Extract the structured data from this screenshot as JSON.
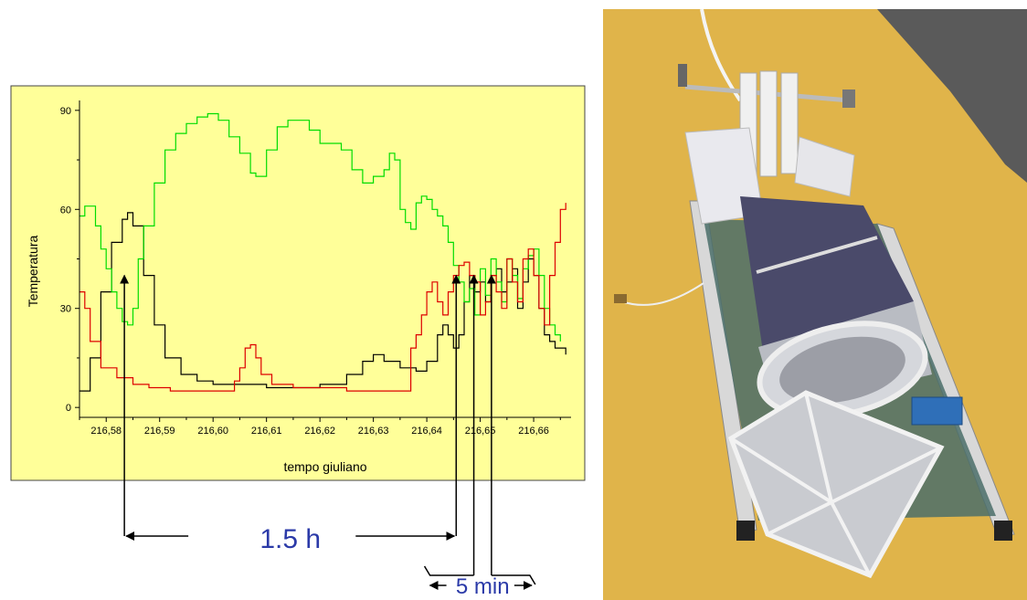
{
  "chart_data": {
    "type": "line",
    "title": "",
    "xlabel": "tempo giuliano",
    "ylabel": "Temperatura",
    "xlim": [
      216.575,
      216.667
    ],
    "ylim": [
      -3,
      93
    ],
    "x_ticks": [
      {
        "value": 216.58,
        "label": "216,58"
      },
      {
        "value": 216.59,
        "label": "216,59"
      },
      {
        "value": 216.6,
        "label": "216,60"
      },
      {
        "value": 216.61,
        "label": "216,61"
      },
      {
        "value": 216.62,
        "label": "216,62"
      },
      {
        "value": 216.63,
        "label": "216,63"
      },
      {
        "value": 216.64,
        "label": "216,64"
      },
      {
        "value": 216.65,
        "label": "216,65"
      },
      {
        "value": 216.66,
        "label": "216,66"
      }
    ],
    "y_ticks": [
      {
        "value": 0,
        "label": "0"
      },
      {
        "value": 30,
        "label": "30"
      },
      {
        "value": 60,
        "label": "60"
      },
      {
        "value": 90,
        "label": "90"
      }
    ],
    "grid": false,
    "legend": "none",
    "plot_background": "#ffff99",
    "series": [
      {
        "color": "#000000",
        "points": [
          [
            216.575,
            5
          ],
          [
            216.577,
            15
          ],
          [
            216.579,
            35
          ],
          [
            216.581,
            50
          ],
          [
            216.583,
            57
          ],
          [
            216.584,
            59
          ],
          [
            216.585,
            55
          ],
          [
            216.587,
            40
          ],
          [
            216.589,
            25
          ],
          [
            216.591,
            15
          ],
          [
            216.594,
            10
          ],
          [
            216.597,
            8
          ],
          [
            216.6,
            7
          ],
          [
            216.605,
            7
          ],
          [
            216.61,
            6
          ],
          [
            216.615,
            6
          ],
          [
            216.62,
            7
          ],
          [
            216.625,
            10
          ],
          [
            216.628,
            14
          ],
          [
            216.63,
            16
          ],
          [
            216.632,
            14
          ],
          [
            216.635,
            12
          ],
          [
            216.638,
            11
          ],
          [
            216.64,
            14
          ],
          [
            216.642,
            22
          ],
          [
            216.643,
            25
          ],
          [
            216.644,
            22
          ],
          [
            216.645,
            18
          ],
          [
            216.646,
            22
          ],
          [
            216.647,
            32
          ],
          [
            216.648,
            40
          ],
          [
            216.649,
            35
          ],
          [
            216.65,
            38
          ],
          [
            216.651,
            32
          ],
          [
            216.652,
            40
          ],
          [
            216.653,
            42
          ],
          [
            216.654,
            35
          ],
          [
            216.655,
            38
          ],
          [
            216.656,
            42
          ],
          [
            216.657,
            30
          ],
          [
            216.658,
            38
          ],
          [
            216.659,
            45
          ],
          [
            216.66,
            40
          ],
          [
            216.661,
            30
          ],
          [
            216.662,
            22
          ],
          [
            216.663,
            20
          ],
          [
            216.664,
            18
          ],
          [
            216.666,
            16
          ]
        ]
      },
      {
        "color": "#00dd00",
        "points": [
          [
            216.575,
            58
          ],
          [
            216.576,
            61
          ],
          [
            216.578,
            55
          ],
          [
            216.579,
            48
          ],
          [
            216.58,
            42
          ],
          [
            216.581,
            35
          ],
          [
            216.582,
            30
          ],
          [
            216.583,
            26
          ],
          [
            216.584,
            25
          ],
          [
            216.585,
            30
          ],
          [
            216.586,
            45
          ],
          [
            216.587,
            55
          ],
          [
            216.589,
            68
          ],
          [
            216.591,
            78
          ],
          [
            216.593,
            83
          ],
          [
            216.595,
            86
          ],
          [
            216.597,
            88
          ],
          [
            216.599,
            89
          ],
          [
            216.601,
            87
          ],
          [
            216.603,
            82
          ],
          [
            216.605,
            77
          ],
          [
            216.607,
            71
          ],
          [
            216.608,
            70
          ],
          [
            216.61,
            78
          ],
          [
            216.612,
            85
          ],
          [
            216.614,
            87
          ],
          [
            216.616,
            87
          ],
          [
            216.618,
            84
          ],
          [
            216.62,
            80
          ],
          [
            216.622,
            80
          ],
          [
            216.624,
            78
          ],
          [
            216.626,
            72
          ],
          [
            216.628,
            68
          ],
          [
            216.63,
            70
          ],
          [
            216.632,
            72
          ],
          [
            216.633,
            77
          ],
          [
            216.634,
            75
          ],
          [
            216.635,
            60
          ],
          [
            216.636,
            56
          ],
          [
            216.637,
            54
          ],
          [
            216.638,
            62
          ],
          [
            216.639,
            64
          ],
          [
            216.64,
            63
          ],
          [
            216.641,
            60
          ],
          [
            216.642,
            58
          ],
          [
            216.643,
            55
          ],
          [
            216.644,
            50
          ],
          [
            216.645,
            43
          ],
          [
            216.646,
            38
          ],
          [
            216.647,
            32
          ],
          [
            216.648,
            36
          ],
          [
            216.649,
            28
          ],
          [
            216.65,
            42
          ],
          [
            216.651,
            34
          ],
          [
            216.652,
            45
          ],
          [
            216.653,
            38
          ],
          [
            216.654,
            32
          ],
          [
            216.655,
            45
          ],
          [
            216.656,
            40
          ],
          [
            216.657,
            33
          ],
          [
            216.658,
            42
          ],
          [
            216.659,
            46
          ],
          [
            216.66,
            48
          ],
          [
            216.661,
            40
          ],
          [
            216.662,
            30
          ],
          [
            216.663,
            25
          ],
          [
            216.664,
            22
          ],
          [
            216.665,
            20
          ]
        ]
      },
      {
        "color": "#dd0000",
        "points": [
          [
            216.575,
            35
          ],
          [
            216.576,
            30
          ],
          [
            216.577,
            20
          ],
          [
            216.579,
            12
          ],
          [
            216.582,
            9
          ],
          [
            216.585,
            7
          ],
          [
            216.588,
            6
          ],
          [
            216.592,
            5
          ],
          [
            216.595,
            5
          ],
          [
            216.6,
            5
          ],
          [
            216.602,
            5
          ],
          [
            216.604,
            8
          ],
          [
            216.605,
            12
          ],
          [
            216.606,
            18
          ],
          [
            216.607,
            19
          ],
          [
            216.608,
            15
          ],
          [
            216.609,
            10
          ],
          [
            216.611,
            7
          ],
          [
            216.615,
            6
          ],
          [
            216.62,
            6
          ],
          [
            216.625,
            5
          ],
          [
            216.63,
            5
          ],
          [
            216.635,
            5
          ],
          [
            216.636,
            5
          ],
          [
            216.637,
            18
          ],
          [
            216.638,
            22
          ],
          [
            216.639,
            28
          ],
          [
            216.64,
            35
          ],
          [
            216.641,
            38
          ],
          [
            216.642,
            32
          ],
          [
            216.643,
            28
          ],
          [
            216.644,
            35
          ],
          [
            216.645,
            40
          ],
          [
            216.646,
            43
          ],
          [
            216.647,
            44
          ],
          [
            216.648,
            40
          ],
          [
            216.649,
            38
          ],
          [
            216.65,
            28
          ],
          [
            216.651,
            32
          ],
          [
            216.652,
            40
          ],
          [
            216.653,
            35
          ],
          [
            216.654,
            30
          ],
          [
            216.655,
            45
          ],
          [
            216.656,
            38
          ],
          [
            216.657,
            32
          ],
          [
            216.658,
            45
          ],
          [
            216.659,
            48
          ],
          [
            216.66,
            40
          ],
          [
            216.661,
            30
          ],
          [
            216.662,
            25
          ],
          [
            216.663,
            40
          ],
          [
            216.664,
            50
          ],
          [
            216.665,
            60
          ],
          [
            216.666,
            62
          ]
        ]
      }
    ],
    "annotations": [
      {
        "text": "1.5 h",
        "from_x": 216.5834,
        "to_x": 216.6455
      },
      {
        "text": "5 min",
        "from_x": 216.6488,
        "to_x": 216.6521
      }
    ]
  },
  "photo": {
    "subject": "balloon-borne instrument payload on ground",
    "background_color": "#e0b44a",
    "asphalt_color": "#5a5a5a"
  }
}
